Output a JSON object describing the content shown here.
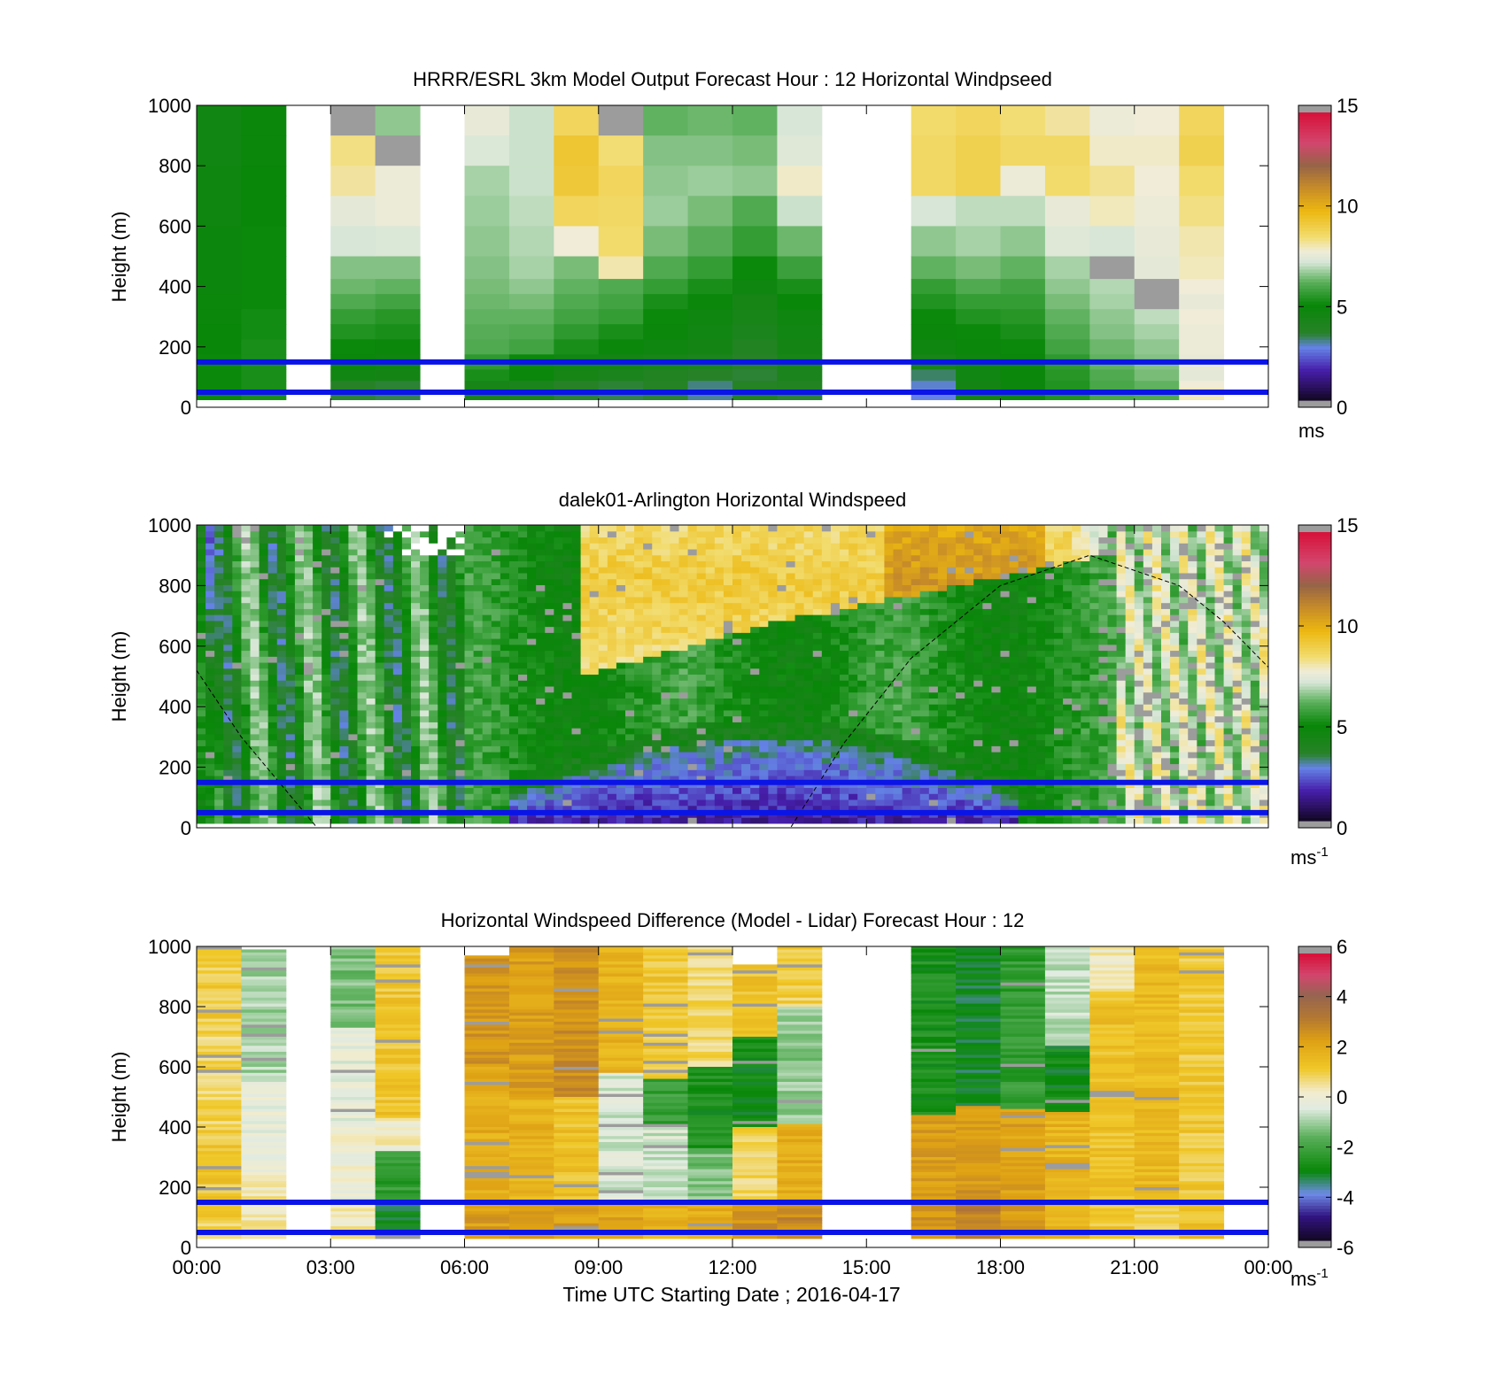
{
  "xlabel": "Time UTC  Starting Date ; 2016-04-17",
  "x_ticks": [
    "00:00",
    "03:00",
    "06:00",
    "09:00",
    "12:00",
    "15:00",
    "18:00",
    "21:00",
    "00:00"
  ],
  "colors": {
    "ref_lines": "#0a14e6",
    "missing": "#9c9c9c"
  },
  "chart_data": [
    {
      "type": "heatmap",
      "id": "model",
      "title": "HRRR/ESRL 3km Model Output   Forecast Hour : 12 Horizontal Windpseed",
      "ylabel": "Height (m)",
      "ylim": [
        0,
        1000
      ],
      "y_ticks": [
        "0",
        "200",
        "400",
        "600",
        "800",
        "1000"
      ],
      "xlim_hours": [
        0,
        24
      ],
      "colorbar": {
        "min": 0,
        "max": 15,
        "ticks": [
          "0",
          "5",
          "10",
          "15"
        ],
        "unit": "ms"
      },
      "reference_heights_m": [
        50,
        150
      ],
      "column_width_hours": 1,
      "levels_m": [
        950,
        850,
        750,
        650,
        550,
        450,
        400,
        350,
        300,
        250,
        200,
        150,
        100,
        75,
        50,
        37
      ],
      "columns": [
        {
          "t": 0,
          "values": [
            4.5,
            4.5,
            4.6,
            4.6,
            4.7,
            4.7,
            4.7,
            4.8,
            4.8,
            4.9,
            4.9,
            5.0,
            5.0,
            5.0,
            5.0,
            5.0
          ]
        },
        {
          "t": 1,
          "values": [
            4.8,
            4.8,
            4.9,
            4.9,
            5.0,
            5.0,
            5.0,
            5.0,
            5.1,
            5.1,
            5.2,
            5.2,
            5.2,
            5.2,
            5.2,
            5.2
          ]
        },
        {
          "t": 3,
          "values": [
            null,
            8.4,
            8.2,
            7.5,
            7.2,
            6.5,
            6.3,
            6.0,
            5.6,
            5.3,
            5.0,
            4.8,
            4.5,
            3.5,
            3.5,
            3.4
          ]
        },
        {
          "t": 4,
          "values": [
            6.6,
            null,
            7.7,
            7.7,
            7.3,
            6.5,
            6.2,
            5.8,
            5.4,
            5.2,
            4.8,
            4.6,
            4.4,
            3.4,
            3.4,
            3.3
          ]
        },
        {
          "t": 6,
          "values": [
            7.6,
            7.3,
            6.8,
            6.7,
            6.6,
            6.5,
            6.4,
            6.3,
            6.2,
            6.1,
            6.0,
            5.5,
            5.2,
            4.2,
            4.2,
            4.1
          ]
        },
        {
          "t": 7,
          "values": [
            7.1,
            7.1,
            7.1,
            7.0,
            6.9,
            6.8,
            6.6,
            6.4,
            6.2,
            6.0,
            5.8,
            5.0,
            4.8,
            4.0,
            4.0,
            4.0
          ]
        },
        {
          "t": 8,
          "values": [
            8.8,
            9.4,
            9.3,
            8.8,
            7.8,
            6.4,
            6.2,
            6.0,
            5.8,
            5.5,
            5.2,
            4.5,
            4.3,
            3.5,
            3.5,
            3.4
          ]
        },
        {
          "t": 9,
          "values": [
            null,
            8.5,
            8.8,
            8.7,
            8.6,
            8.1,
            6.0,
            5.8,
            5.6,
            5.2,
            4.8,
            4.4,
            4.0,
            3.4,
            3.3,
            3.3
          ]
        },
        {
          "t": 10,
          "values": [
            6.2,
            6.5,
            6.6,
            6.7,
            6.4,
            6.0,
            5.6,
            5.2,
            5.0,
            4.8,
            4.6,
            4.2,
            3.8,
            3.6,
            3.5,
            3.4
          ]
        },
        {
          "t": 11,
          "values": [
            6.3,
            6.5,
            6.7,
            6.4,
            6.1,
            5.6,
            5.2,
            4.8,
            4.6,
            4.5,
            4.4,
            4.0,
            3.5,
            3.1,
            3.0,
            3.0
          ]
        },
        {
          "t": 12,
          "values": [
            6.2,
            6.4,
            6.6,
            6.0,
            5.6,
            5.0,
            4.6,
            4.3,
            4.2,
            4.0,
            3.8,
            3.5,
            3.4,
            3.6,
            3.7,
            3.8
          ]
        },
        {
          "t": 13,
          "values": [
            7.2,
            7.4,
            7.9,
            7.1,
            6.3,
            5.7,
            5.2,
            4.9,
            4.6,
            4.5,
            4.4,
            4.2,
            4.0,
            3.8,
            3.6,
            3.4
          ]
        },
        {
          "t": 16,
          "values": [
            8.6,
            8.7,
            8.7,
            7.2,
            6.6,
            6.2,
            5.6,
            5.3,
            5.0,
            4.8,
            4.6,
            4.2,
            3.2,
            2.8,
            2.7,
            2.7
          ]
        },
        {
          "t": 17,
          "values": [
            8.8,
            9.0,
            9.0,
            7.0,
            6.8,
            6.4,
            6.0,
            5.6,
            5.3,
            5.0,
            4.8,
            4.6,
            4.5,
            4.4,
            4.4,
            4.4
          ]
        },
        {
          "t": 18,
          "values": [
            8.5,
            8.7,
            7.7,
            7.0,
            6.6,
            6.2,
            5.8,
            5.6,
            5.4,
            5.2,
            5.0,
            4.8,
            4.8,
            4.7,
            4.6,
            4.6
          ]
        },
        {
          "t": 19,
          "values": [
            8.2,
            8.7,
            8.6,
            7.6,
            7.4,
            6.8,
            6.6,
            6.4,
            6.2,
            6.0,
            5.8,
            5.5,
            5.4,
            5.3,
            5.3,
            5.3
          ]
        },
        {
          "t": 20,
          "values": [
            7.7,
            7.9,
            8.3,
            8.0,
            7.2,
            null,
            6.9,
            6.8,
            6.6,
            6.5,
            6.3,
            6.2,
            6.0,
            5.9,
            5.9,
            5.9
          ]
        },
        {
          "t": 21,
          "values": [
            7.8,
            7.9,
            7.8,
            7.7,
            7.6,
            7.5,
            null,
            null,
            7.0,
            6.8,
            6.6,
            6.5,
            6.4,
            6.2,
            6.1,
            6.0
          ]
        },
        {
          "t": 22,
          "values": [
            8.8,
            9.0,
            8.6,
            8.4,
            8.1,
            8.0,
            7.8,
            7.6,
            7.8,
            7.7,
            7.7,
            7.6,
            7.5,
            7.8,
            8.1,
            8.0
          ]
        }
      ]
    },
    {
      "type": "heatmap",
      "id": "lidar",
      "title": "dalek01-Arlington  Horizontal Windspeed",
      "ylabel": "Height (m)",
      "ylim": [
        0,
        1000
      ],
      "y_ticks": [
        "0",
        "200",
        "400",
        "600",
        "800",
        "1000"
      ],
      "xlim_hours": [
        0,
        24
      ],
      "colorbar": {
        "min": 0,
        "max": 15,
        "ticks": [
          "0",
          "5",
          "10",
          "15"
        ],
        "unit": "ms",
        "unit_exp": "-1"
      },
      "reference_heights_m": [
        50,
        150
      ],
      "field_description": "time-height lidar windspeed; low-level jet core 9–11 m/s between 500 and 1000 m from 09:00 to 20:00, weak winds 1–3 m/s below 250 m from 07:00 to 18:00",
      "curve": {
        "style": "dashed",
        "points_hours_m": [
          [
            0,
            520
          ],
          [
            1,
            300
          ],
          [
            2.7,
            0
          ],
          [
            4,
            0
          ],
          [
            13.3,
            0
          ],
          [
            14.5,
            280
          ],
          [
            16,
            560
          ],
          [
            18,
            800
          ],
          [
            20,
            900
          ],
          [
            22,
            800
          ],
          [
            23,
            680
          ],
          [
            24,
            530
          ]
        ]
      }
    },
    {
      "type": "heatmap",
      "id": "difference",
      "title": "Horizontal Windspeed Difference (Model - Lidar) Forecast Hour : 12",
      "ylabel": "Height (m)",
      "xlabel": "Time UTC  Starting Date ; 2016-04-17",
      "ylim": [
        0,
        1000
      ],
      "y_ticks": [
        "0",
        "200",
        "400",
        "600",
        "800",
        "1000"
      ],
      "xlim_hours": [
        0,
        24
      ],
      "colorbar": {
        "min": -6,
        "max": 6,
        "ticks": [
          "-6",
          "-4",
          "-2",
          "0",
          "2",
          "4",
          "6"
        ],
        "unit": "ms",
        "unit_exp": "-1"
      },
      "reference_heights_m": [
        50,
        150
      ],
      "column_width_hours": 1,
      "column_profiles": [
        {
          "t": 0,
          "top_m": 1000,
          "bottom_m": 30,
          "segments": [
            [
              1000,
              1.1
            ],
            [
              700,
              0.9
            ],
            [
              400,
              1.2
            ],
            [
              100,
              0.8
            ]
          ]
        },
        {
          "t": 1,
          "top_m": 990,
          "bottom_m": 30,
          "segments": [
            [
              1000,
              -1.0
            ],
            [
              550,
              -0.2
            ],
            [
              250,
              0.4
            ]
          ]
        },
        {
          "t": 3,
          "top_m": 1000,
          "bottom_m": 30,
          "segments": [
            [
              1000,
              -1.4
            ],
            [
              730,
              -0.3
            ],
            [
              420,
              0.0
            ],
            [
              150,
              0.4
            ]
          ]
        },
        {
          "t": 4,
          "top_m": 1000,
          "bottom_m": 30,
          "segments": [
            [
              1000,
              1.3
            ],
            [
              430,
              0.2
            ],
            [
              320,
              -2.4
            ],
            [
              150,
              -3.1
            ]
          ]
        },
        {
          "t": 6,
          "top_m": 970,
          "bottom_m": 30,
          "segments": [
            [
              1000,
              2.6
            ],
            [
              600,
              2.0
            ],
            [
              150,
              2.4
            ]
          ]
        },
        {
          "t": 7,
          "top_m": 1000,
          "bottom_m": 30,
          "segments": [
            [
              1000,
              2.4
            ],
            [
              500,
              1.9
            ],
            [
              150,
              2.6
            ]
          ]
        },
        {
          "t": 8,
          "top_m": 1000,
          "bottom_m": 30,
          "segments": [
            [
              1000,
              2.8
            ],
            [
              500,
              1.4
            ],
            [
              150,
              2.4
            ]
          ]
        },
        {
          "t": 9,
          "top_m": 1000,
          "bottom_m": 30,
          "segments": [
            [
              1000,
              1.8
            ],
            [
              580,
              -0.6
            ],
            [
              150,
              2.2
            ]
          ]
        },
        {
          "t": 10,
          "top_m": 1000,
          "bottom_m": 30,
          "segments": [
            [
              1000,
              1.2
            ],
            [
              560,
              -2.3
            ],
            [
              400,
              -0.6
            ],
            [
              150,
              1.8
            ]
          ]
        },
        {
          "t": 11,
          "top_m": 1000,
          "bottom_m": 30,
          "segments": [
            [
              1000,
              0.8
            ],
            [
              600,
              -2.8
            ],
            [
              330,
              -1.4
            ],
            [
              150,
              2.0
            ]
          ]
        },
        {
          "t": 12,
          "top_m": 940,
          "bottom_m": 30,
          "segments": [
            [
              1000,
              1.3
            ],
            [
              700,
              -3.0
            ],
            [
              400,
              0.9
            ],
            [
              150,
              2.8
            ]
          ]
        },
        {
          "t": 13,
          "top_m": 1000,
          "bottom_m": 30,
          "segments": [
            [
              1000,
              1.0
            ],
            [
              800,
              -1.2
            ],
            [
              410,
              2.0
            ],
            [
              150,
              2.9
            ]
          ]
        },
        {
          "t": 16,
          "top_m": 1000,
          "bottom_m": 30,
          "segments": [
            [
              1000,
              -2.8
            ],
            [
              440,
              2.4
            ],
            [
              150,
              2.7
            ]
          ]
        },
        {
          "t": 17,
          "top_m": 1000,
          "bottom_m": 30,
          "segments": [
            [
              1000,
              -3.2
            ],
            [
              470,
              2.6
            ],
            [
              150,
              3.2
            ]
          ]
        },
        {
          "t": 18,
          "top_m": 1000,
          "bottom_m": 30,
          "segments": [
            [
              1000,
              -2.4
            ],
            [
              460,
              2.3
            ],
            [
              150,
              2.5
            ]
          ]
        },
        {
          "t": 19,
          "top_m": 1000,
          "bottom_m": 30,
          "segments": [
            [
              1000,
              -0.8
            ],
            [
              670,
              -3.0
            ],
            [
              450,
              1.8
            ],
            [
              150,
              1.9
            ]
          ]
        },
        {
          "t": 20,
          "top_m": 1000,
          "bottom_m": 30,
          "segments": [
            [
              1000,
              0.3
            ],
            [
              850,
              1.4
            ],
            [
              150,
              1.2
            ]
          ]
        },
        {
          "t": 21,
          "top_m": 1000,
          "bottom_m": 30,
          "segments": [
            [
              1000,
              1.6
            ],
            [
              150,
              0.9
            ]
          ]
        },
        {
          "t": 22,
          "top_m": 1000,
          "bottom_m": 30,
          "segments": [
            [
              1000,
              1.2
            ],
            [
              150,
              1.3
            ]
          ]
        }
      ]
    }
  ]
}
